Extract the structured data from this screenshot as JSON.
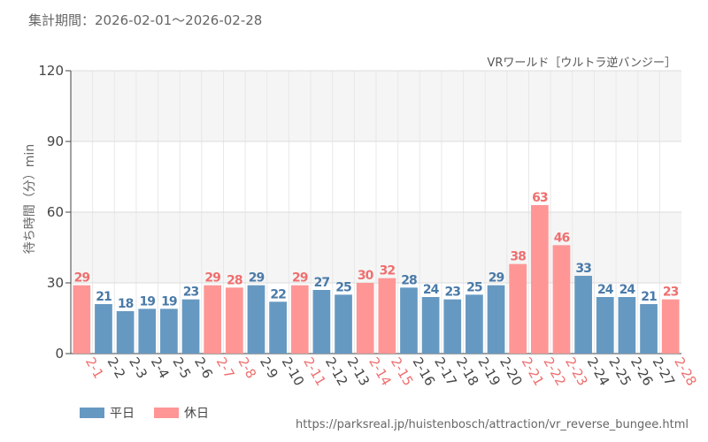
{
  "header": {
    "period_label": "集計期間：2026-02-01〜2026-02-28"
  },
  "legend": {
    "weekday_label": "平日",
    "holiday_label": "休日"
  },
  "colors": {
    "weekday": "#6699c2",
    "holiday": "#ff9696",
    "weekday_text": "#4a7aa8",
    "holiday_text": "#ef6f6f"
  },
  "source_url": "https://parksreal.jp/huistenbosch/attraction/vr_reverse_bungee.html",
  "chart_data": {
    "type": "bar",
    "title": "VRワールド［ウルトラ逆バンジー］",
    "ylabel": "待ち時間（分）min",
    "xlabel": "",
    "ylim": [
      0,
      120
    ],
    "yticks": [
      0,
      30,
      60,
      90,
      120
    ],
    "grid": true,
    "categories": [
      "2-1",
      "2-2",
      "2-3",
      "2-4",
      "2-5",
      "2-6",
      "2-7",
      "2-8",
      "2-9",
      "2-10",
      "2-11",
      "2-12",
      "2-13",
      "2-14",
      "2-15",
      "2-16",
      "2-17",
      "2-18",
      "2-19",
      "2-20",
      "2-21",
      "2-22",
      "2-23",
      "2-24",
      "2-25",
      "2-26",
      "2-27",
      "2-28"
    ],
    "values": [
      29,
      21,
      18,
      19,
      19,
      23,
      29,
      28,
      29,
      22,
      29,
      27,
      25,
      30,
      32,
      28,
      24,
      23,
      25,
      29,
      38,
      63,
      46,
      33,
      24,
      24,
      21,
      23
    ],
    "day_type": [
      "holiday",
      "weekday",
      "weekday",
      "weekday",
      "weekday",
      "weekday",
      "holiday",
      "holiday",
      "weekday",
      "weekday",
      "holiday",
      "weekday",
      "weekday",
      "holiday",
      "holiday",
      "weekday",
      "weekday",
      "weekday",
      "weekday",
      "weekday",
      "holiday",
      "holiday",
      "holiday",
      "weekday",
      "weekday",
      "weekday",
      "weekday",
      "holiday"
    ]
  }
}
